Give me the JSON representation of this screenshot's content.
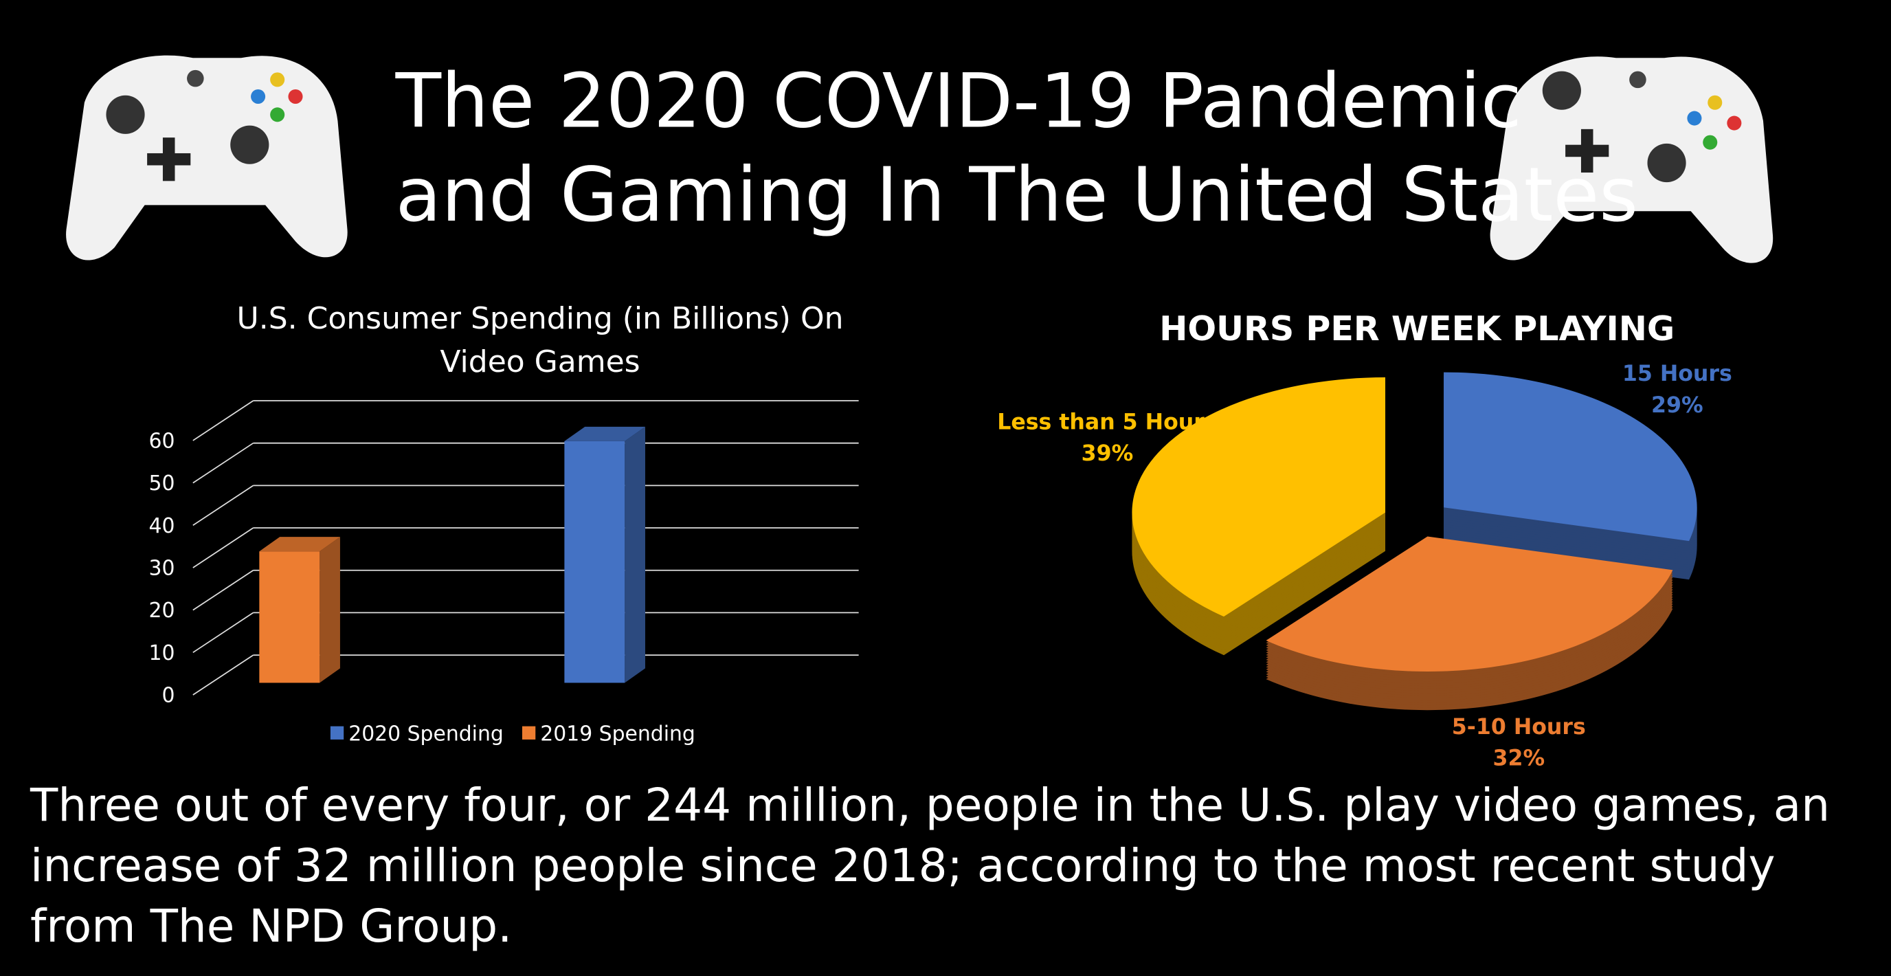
{
  "header": {
    "title": [
      "The 2020 COVID-19 Pandemic",
      "and Gaming In The United States"
    ]
  },
  "chart_data": [
    {
      "type": "bar",
      "title": "U.S. Consumer Spending (in Billions) On Video Games",
      "categories": [
        null
      ],
      "series": [
        {
          "name": "2020 Spending",
          "color": "#4472c4",
          "values": [
            57
          ]
        },
        {
          "name": "2019 Spending",
          "color": "#ed7d31",
          "values": [
            31
          ]
        }
      ],
      "ylim": [
        0,
        70
      ],
      "yticks": [
        0,
        10,
        20,
        30,
        40,
        50,
        60
      ],
      "grid": true,
      "legend": "bottom"
    },
    {
      "type": "pie",
      "title": "HOURS PER WEEK PLAYING",
      "categories": [
        "15 Hours",
        "5-10 Hours",
        "Less than 5 Hours"
      ],
      "values": [
        29,
        32,
        39
      ],
      "value_labels": [
        "29%",
        "32%",
        "39%"
      ],
      "colors": [
        "#4472c4",
        "#ed7d31",
        "#ffc000"
      ]
    }
  ],
  "caption": "Three out of every four, or 244 million, people in the U.S. play video games, an increase of 32 million people since 2018; according to the most recent study from The NPD Group."
}
